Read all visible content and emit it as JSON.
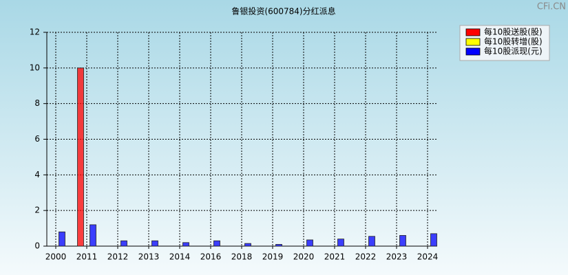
{
  "chart_data": {
    "type": "bar",
    "title": "鲁银投资(600784)分红派息",
    "watermark": "CFi.CN",
    "categories": [
      "2000",
      "2011",
      "2012",
      "2013",
      "2014",
      "2016",
      "2018",
      "2019",
      "2020",
      "2021",
      "2022",
      "2023",
      "2024"
    ],
    "series": [
      {
        "name": "每10股送股(股)",
        "color": "#ff0000",
        "values": [
          0,
          10,
          0,
          0,
          0,
          0,
          0,
          0,
          0,
          0,
          0,
          0,
          0
        ]
      },
      {
        "name": "每10股转增(股)",
        "color": "#ffff00",
        "values": [
          0,
          0,
          0,
          0,
          0,
          0,
          0,
          0,
          0,
          0,
          0,
          0,
          0
        ]
      },
      {
        "name": "每10股派现(元)",
        "color": "#0000ff",
        "values": [
          0.8,
          1.2,
          0.3,
          0.3,
          0.2,
          0.3,
          0.15,
          0.1,
          0.35,
          0.4,
          0.55,
          0.6,
          0.7
        ]
      }
    ],
    "ylim": [
      0,
      12
    ],
    "yticks": [
      0,
      2,
      4,
      6,
      8,
      10,
      12
    ],
    "grid": true,
    "legend": "top-right"
  }
}
